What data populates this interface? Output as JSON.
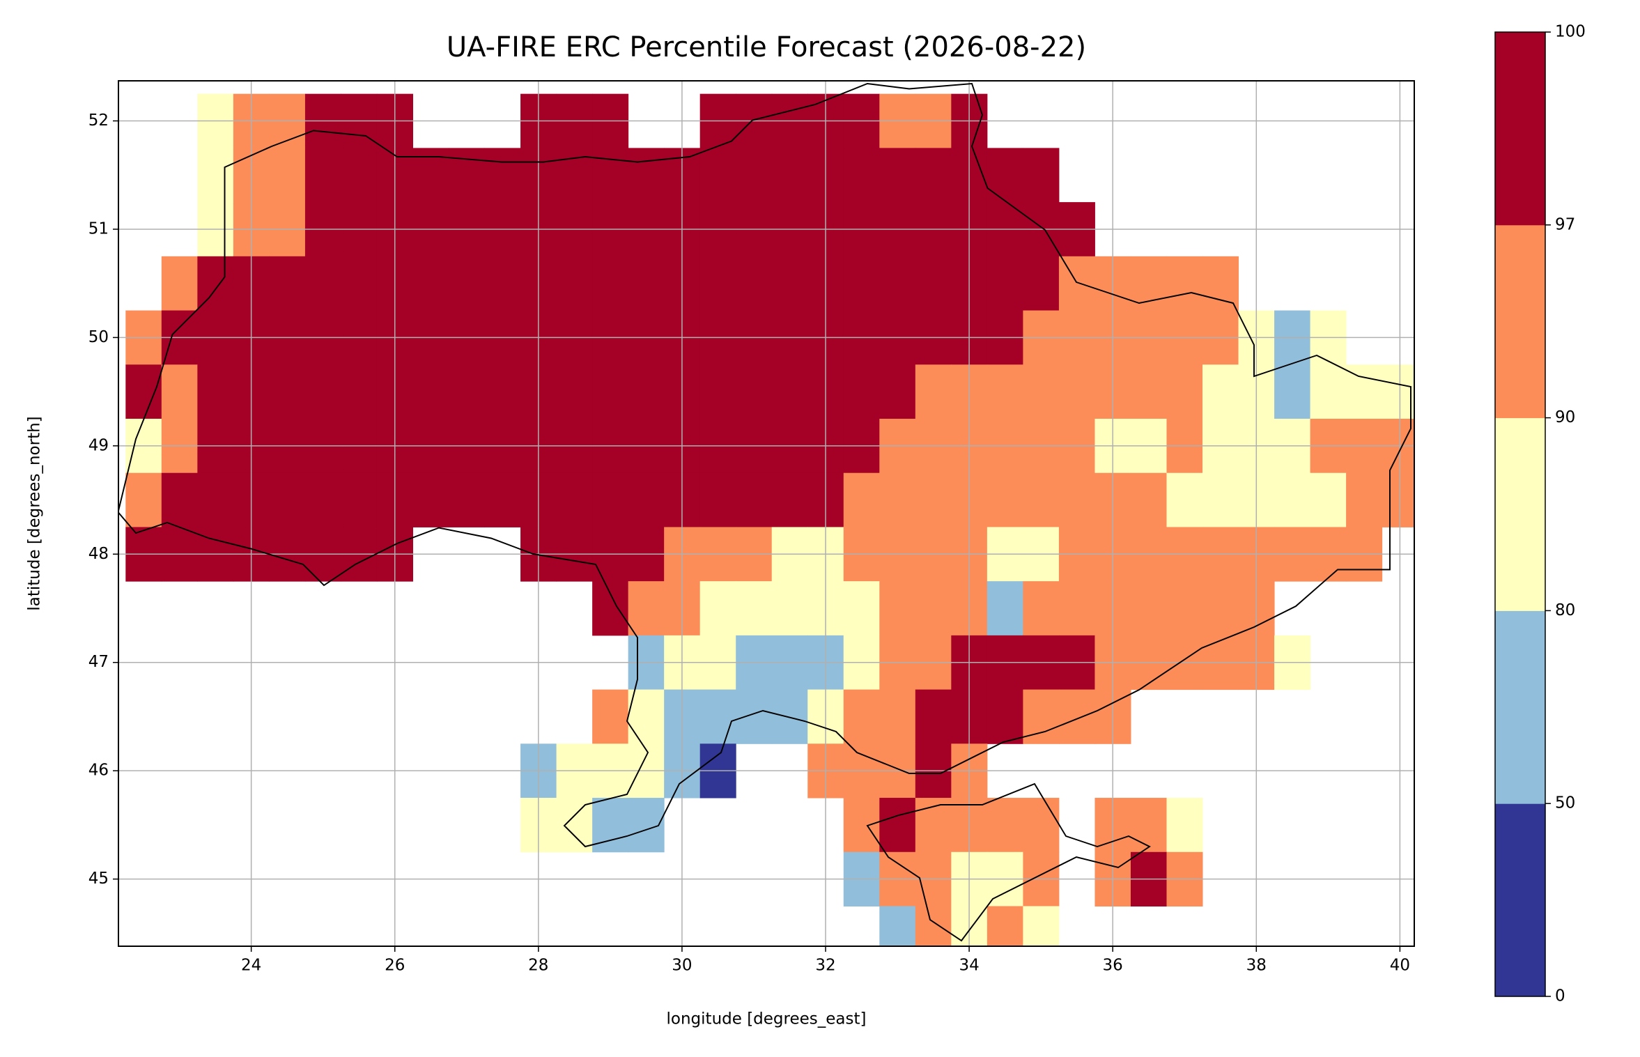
{
  "chart_data": {
    "type": "heatmap",
    "title": "UA-FIRE ERC Percentile Forecast (2026-08-22)",
    "x_label": "longitude [degrees_east]",
    "y_label": "latitude [degrees_north]",
    "xlim": [
      22.15,
      40.2
    ],
    "ylim": [
      44.38,
      52.37
    ],
    "xticks": [
      24,
      26,
      28,
      30,
      32,
      34,
      36,
      38,
      40
    ],
    "yticks": [
      45,
      46,
      47,
      48,
      49,
      50,
      51,
      52
    ],
    "grid": true,
    "x": [
      22.5,
      23,
      23.5,
      24,
      24.5,
      25,
      25.5,
      26,
      26.5,
      27,
      27.5,
      28,
      28.5,
      29,
      29.5,
      30,
      30.5,
      31,
      31.5,
      32,
      32.5,
      33,
      33.5,
      34,
      34.5,
      35,
      35.5,
      36,
      36.5,
      37,
      37.5,
      38,
      38.5,
      39,
      39.5,
      40
    ],
    "y": [
      52,
      51.5,
      51,
      50.5,
      50,
      49.5,
      49,
      48.5,
      48,
      47.5,
      47,
      46.5,
      46,
      45.5,
      45,
      44.5
    ],
    "values": [
      [
        null,
        null,
        85,
        94,
        94,
        98,
        98,
        98,
        null,
        null,
        null,
        98,
        98,
        98,
        null,
        null,
        98,
        98,
        98,
        98,
        98,
        94,
        94,
        98,
        null,
        null,
        null,
        null,
        null,
        null,
        null,
        null,
        null,
        null,
        null,
        null
      ],
      [
        null,
        null,
        85,
        94,
        94,
        98,
        98,
        98,
        98,
        98,
        98,
        98,
        98,
        98,
        98,
        98,
        98,
        98,
        98,
        98,
        98,
        98,
        98,
        98,
        98,
        98,
        null,
        null,
        null,
        null,
        null,
        null,
        null,
        null,
        null,
        null
      ],
      [
        null,
        null,
        85,
        94,
        94,
        98,
        98,
        98,
        98,
        98,
        98,
        98,
        98,
        98,
        98,
        98,
        98,
        98,
        98,
        98,
        98,
        98,
        98,
        98,
        98,
        98,
        98,
        null,
        null,
        null,
        null,
        null,
        null,
        null,
        null,
        null
      ],
      [
        null,
        94,
        98,
        98,
        98,
        98,
        98,
        98,
        98,
        98,
        98,
        98,
        98,
        98,
        98,
        98,
        98,
        98,
        98,
        98,
        98,
        98,
        98,
        98,
        98,
        98,
        94,
        94,
        94,
        94,
        94,
        null,
        null,
        null,
        null,
        null
      ],
      [
        94,
        98,
        98,
        98,
        98,
        98,
        98,
        98,
        98,
        98,
        98,
        98,
        98,
        98,
        98,
        98,
        98,
        98,
        98,
        98,
        98,
        98,
        98,
        98,
        98,
        94,
        94,
        94,
        94,
        94,
        94,
        85,
        65,
        85,
        null,
        null
      ],
      [
        98,
        94,
        98,
        98,
        98,
        98,
        98,
        98,
        98,
        98,
        98,
        98,
        98,
        98,
        98,
        98,
        98,
        98,
        98,
        98,
        98,
        98,
        94,
        94,
        94,
        94,
        94,
        94,
        94,
        94,
        85,
        85,
        65,
        85,
        85,
        85
      ],
      [
        85,
        94,
        98,
        98,
        98,
        98,
        98,
        98,
        98,
        98,
        98,
        98,
        98,
        98,
        98,
        98,
        98,
        98,
        98,
        98,
        98,
        94,
        94,
        94,
        94,
        94,
        94,
        85,
        85,
        94,
        85,
        85,
        85,
        94,
        94,
        94
      ],
      [
        94,
        98,
        98,
        98,
        98,
        98,
        98,
        98,
        98,
        98,
        98,
        98,
        98,
        98,
        98,
        98,
        98,
        98,
        98,
        98,
        94,
        94,
        94,
        94,
        94,
        94,
        94,
        94,
        94,
        85,
        85,
        85,
        85,
        85,
        94,
        94
      ],
      [
        98,
        98,
        98,
        98,
        98,
        98,
        98,
        98,
        null,
        null,
        null,
        98,
        98,
        98,
        98,
        94,
        94,
        94,
        85,
        85,
        94,
        94,
        94,
        94,
        85,
        85,
        94,
        94,
        94,
        94,
        94,
        94,
        94,
        94,
        94,
        null
      ],
      [
        null,
        null,
        null,
        null,
        null,
        null,
        null,
        null,
        null,
        null,
        null,
        null,
        null,
        98,
        94,
        94,
        85,
        85,
        85,
        85,
        85,
        94,
        94,
        94,
        65,
        94,
        94,
        94,
        94,
        94,
        94,
        94,
        null,
        null,
        null,
        null
      ],
      [
        null,
        null,
        null,
        null,
        null,
        null,
        null,
        null,
        null,
        null,
        null,
        null,
        null,
        null,
        65,
        85,
        85,
        65,
        65,
        65,
        85,
        94,
        94,
        98,
        98,
        98,
        98,
        94,
        94,
        94,
        94,
        94,
        85,
        null,
        null,
        null
      ],
      [
        null,
        null,
        null,
        null,
        null,
        null,
        null,
        null,
        null,
        null,
        null,
        null,
        null,
        94,
        85,
        65,
        65,
        65,
        65,
        85,
        94,
        94,
        98,
        98,
        98,
        94,
        94,
        94,
        null,
        null,
        null,
        null,
        null,
        null,
        null,
        null
      ],
      [
        null,
        null,
        null,
        null,
        null,
        null,
        null,
        null,
        null,
        null,
        null,
        65,
        85,
        85,
        85,
        65,
        30,
        null,
        null,
        94,
        94,
        94,
        98,
        94,
        null,
        null,
        null,
        null,
        null,
        null,
        null,
        null,
        null,
        null,
        null,
        null
      ],
      [
        null,
        null,
        null,
        null,
        null,
        null,
        null,
        null,
        null,
        null,
        null,
        85,
        85,
        65,
        65,
        null,
        null,
        null,
        null,
        null,
        94,
        98,
        94,
        94,
        94,
        94,
        null,
        94,
        94,
        85,
        null,
        null,
        null,
        null,
        null,
        null
      ],
      [
        null,
        null,
        null,
        null,
        null,
        null,
        null,
        null,
        null,
        null,
        null,
        null,
        null,
        null,
        null,
        null,
        null,
        null,
        null,
        null,
        65,
        94,
        94,
        85,
        85,
        94,
        null,
        94,
        98,
        94,
        null,
        null,
        null,
        null,
        null,
        null
      ],
      [
        null,
        null,
        null,
        null,
        null,
        null,
        null,
        null,
        null,
        null,
        null,
        null,
        null,
        null,
        null,
        null,
        null,
        null,
        null,
        null,
        null,
        65,
        94,
        85,
        94,
        85,
        null,
        null,
        null,
        null,
        null,
        null,
        null,
        null,
        null,
        null
      ]
    ],
    "colorbar": {
      "boundaries": [
        0,
        50,
        80,
        90,
        97,
        100
      ],
      "colors": [
        "#313695",
        "#91bfdb",
        "#ffffbf",
        "#fc8d59",
        "#a50026"
      ]
    }
  }
}
